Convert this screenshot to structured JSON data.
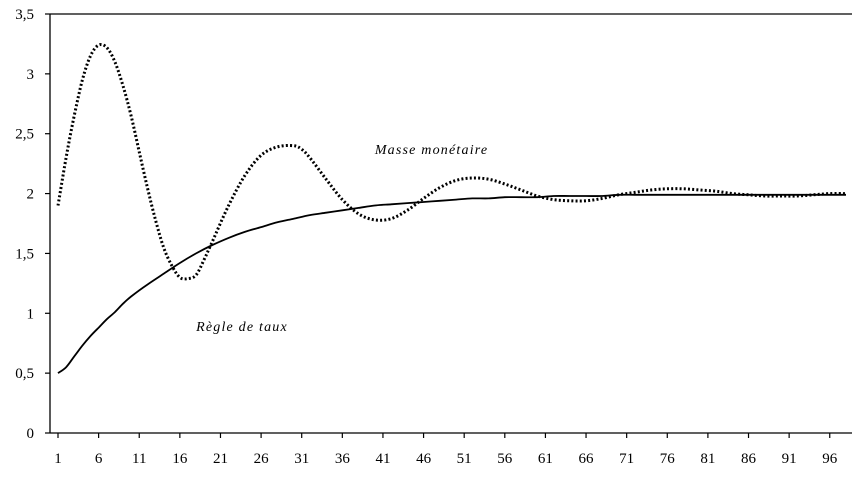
{
  "chart_data": {
    "type": "line",
    "title": "",
    "xlabel": "",
    "ylabel": "",
    "ylim": [
      0,
      3.5
    ],
    "xlim": [
      1,
      98
    ],
    "y_ticks": [
      "0",
      "0,5",
      "1",
      "1,5",
      "2",
      "2,5",
      "3",
      "3,5"
    ],
    "x_ticks": [
      "1",
      "6",
      "11",
      "16",
      "21",
      "26",
      "31",
      "36",
      "41",
      "46",
      "51",
      "56",
      "61",
      "66",
      "71",
      "76",
      "81",
      "86",
      "91",
      "96"
    ],
    "grid": false,
    "series": [
      {
        "name": "Masse monétaire",
        "style": "dotted",
        "x": [
          1,
          2,
          3,
          4,
          5,
          6,
          7,
          8,
          9,
          10,
          11,
          12,
          13,
          14,
          15,
          16,
          17,
          18,
          19,
          20,
          22,
          24,
          26,
          28,
          30,
          31,
          32,
          34,
          36,
          38,
          40,
          42,
          44,
          46,
          48,
          50,
          52,
          54,
          56,
          58,
          60,
          62,
          64,
          66,
          68,
          70,
          72,
          74,
          76,
          78,
          80,
          82,
          84,
          86,
          88,
          90,
          92,
          94,
          96,
          98
        ],
        "y": [
          1.9,
          2.3,
          2.65,
          2.95,
          3.15,
          3.24,
          3.22,
          3.1,
          2.9,
          2.65,
          2.35,
          2.05,
          1.78,
          1.55,
          1.4,
          1.3,
          1.29,
          1.32,
          1.45,
          1.6,
          1.9,
          2.15,
          2.32,
          2.39,
          2.4,
          2.37,
          2.3,
          2.12,
          1.95,
          1.83,
          1.78,
          1.79,
          1.86,
          1.96,
          2.05,
          2.11,
          2.13,
          2.12,
          2.08,
          2.03,
          1.98,
          1.95,
          1.94,
          1.94,
          1.96,
          1.99,
          2.01,
          2.03,
          2.04,
          2.04,
          2.03,
          2.02,
          2.0,
          1.99,
          1.98,
          1.98,
          1.98,
          1.99,
          2.0,
          2.0
        ]
      },
      {
        "name": "Règle de taux",
        "style": "solid",
        "x": [
          1,
          2,
          3,
          4,
          5,
          6,
          7,
          8,
          9,
          10,
          12,
          14,
          16,
          18,
          20,
          22,
          24,
          26,
          28,
          30,
          32,
          34,
          36,
          38,
          40,
          42,
          44,
          46,
          48,
          50,
          52,
          54,
          56,
          58,
          60,
          62,
          64,
          66,
          68,
          70,
          72,
          74,
          76,
          78,
          80,
          82,
          84,
          86,
          88,
          90,
          92,
          94,
          96,
          98
        ],
        "y": [
          0.5,
          0.55,
          0.64,
          0.73,
          0.81,
          0.88,
          0.95,
          1.01,
          1.08,
          1.14,
          1.24,
          1.33,
          1.42,
          1.5,
          1.57,
          1.63,
          1.68,
          1.72,
          1.76,
          1.79,
          1.82,
          1.84,
          1.86,
          1.88,
          1.9,
          1.91,
          1.92,
          1.93,
          1.94,
          1.95,
          1.96,
          1.96,
          1.97,
          1.97,
          1.97,
          1.98,
          1.98,
          1.98,
          1.98,
          1.99,
          1.99,
          1.99,
          1.99,
          1.99,
          1.99,
          1.99,
          1.99,
          1.99,
          1.99,
          1.99,
          1.99,
          1.99,
          1.99,
          1.99
        ]
      }
    ],
    "annotations": [
      {
        "text": "Masse monétaire",
        "x": 40,
        "y": 2.33
      },
      {
        "text": "Règle de taux",
        "x": 18,
        "y": 0.85
      }
    ]
  }
}
